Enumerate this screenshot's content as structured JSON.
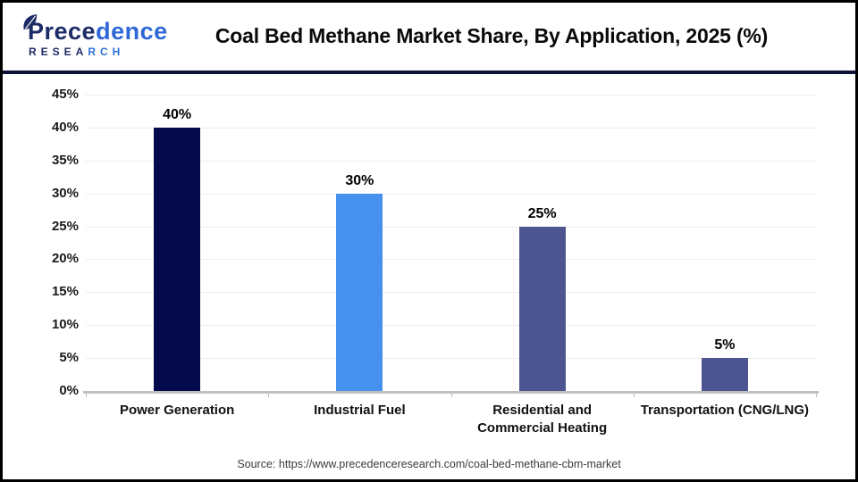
{
  "header": {
    "logo": {
      "word1_part1": "Prece",
      "word1_part2": "dence",
      "word2_part1": "RESEA",
      "word2_part2": "RCH"
    },
    "title": "Coal Bed Methane Market Share, By Application, 2025 (%)"
  },
  "chart_data": {
    "type": "bar",
    "title": "Coal Bed Methane Market Share, By Application, 2025 (%)",
    "categories": [
      [
        "Power Generation"
      ],
      [
        "Industrial Fuel"
      ],
      [
        "Residential and",
        "Commercial Heating"
      ],
      [
        "Transportation (CNG/LNG)"
      ]
    ],
    "values": [
      40,
      30,
      25,
      5
    ],
    "value_labels": [
      "40%",
      "30%",
      "25%",
      "5%"
    ],
    "bar_colors": [
      "#03094a",
      "#4691ee",
      "#4d5591",
      "#4d5591"
    ],
    "ylim": [
      0,
      45
    ],
    "ytick_step": 5,
    "ytick_labels": [
      "0%",
      "5%",
      "10%",
      "15%",
      "20%",
      "25%",
      "30%",
      "35%",
      "40%",
      "45%"
    ],
    "xlabel": "",
    "ylabel": "",
    "grid": true,
    "legend_position": "none"
  },
  "footer": {
    "source": "Source: https://www.precedenceresearch.com/coal-bed-methane-cbm-market"
  },
  "colors": {
    "divider": "#0d1038",
    "gridline": "#ededed",
    "axis": "#c0c0c0",
    "logo_dark": "#1d2b67",
    "logo_blue": "#2d68d6"
  }
}
